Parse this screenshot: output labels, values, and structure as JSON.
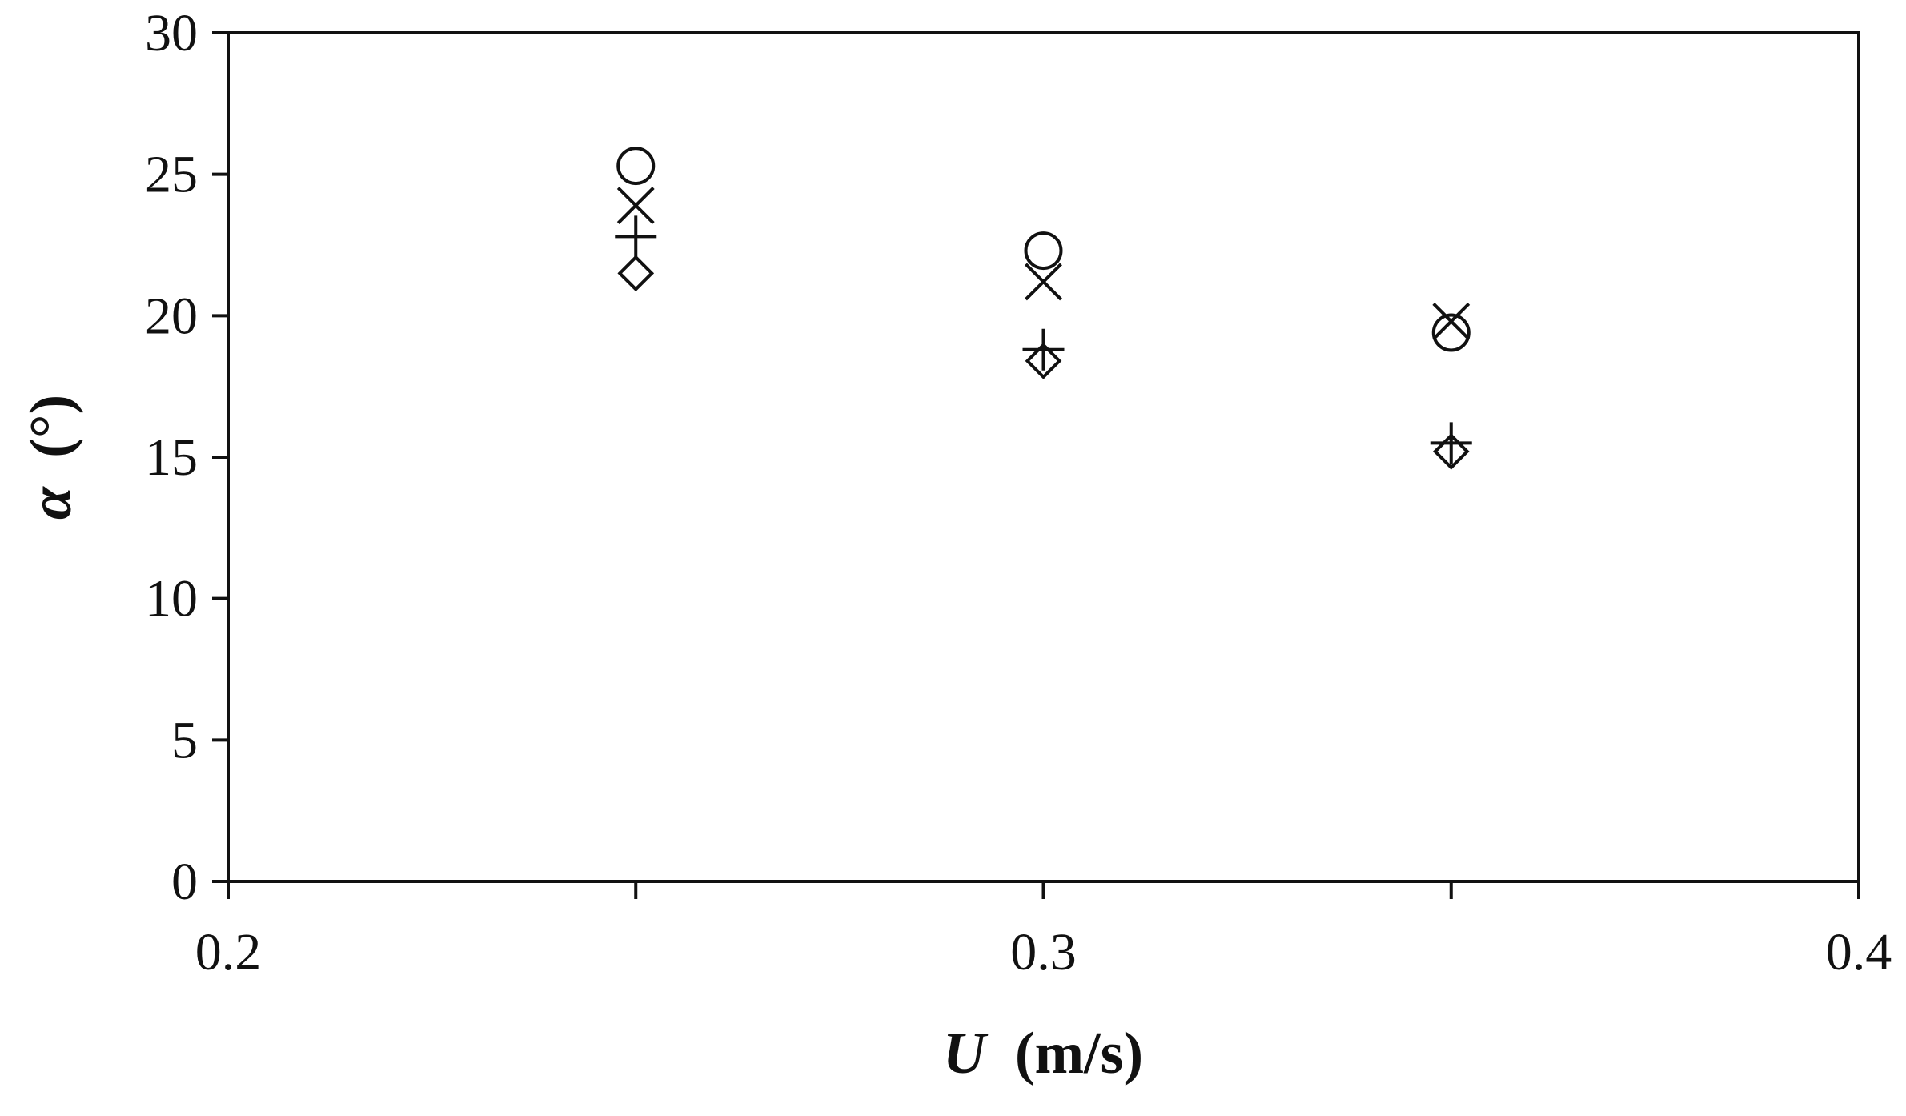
{
  "chart_data": {
    "type": "scatter",
    "xlabel_var": "U",
    "xlabel_unit": "(m/s)",
    "ylabel_var": "α",
    "ylabel_unit": "(°)",
    "xlim": [
      0.2,
      0.4
    ],
    "ylim": [
      0,
      30
    ],
    "x_ticks": [
      "0.2",
      "0.3",
      "0.4"
    ],
    "y_ticks": [
      "0",
      "5",
      "10",
      "15",
      "20",
      "25",
      "30"
    ],
    "x_minor_ticks": [
      0.25,
      0.35
    ],
    "grid": false,
    "series": [
      {
        "marker": "circle",
        "x": [
          0.25,
          0.3,
          0.35
        ],
        "y": [
          25.3,
          22.3,
          19.4
        ]
      },
      {
        "marker": "cross",
        "x": [
          0.25,
          0.3,
          0.35
        ],
        "y": [
          23.9,
          21.2,
          19.8
        ]
      },
      {
        "marker": "plus",
        "x": [
          0.25,
          0.3,
          0.35
        ],
        "y": [
          22.8,
          18.8,
          15.5
        ]
      },
      {
        "marker": "diamond",
        "x": [
          0.25,
          0.3,
          0.35
        ],
        "y": [
          21.5,
          18.4,
          15.2
        ]
      }
    ]
  }
}
